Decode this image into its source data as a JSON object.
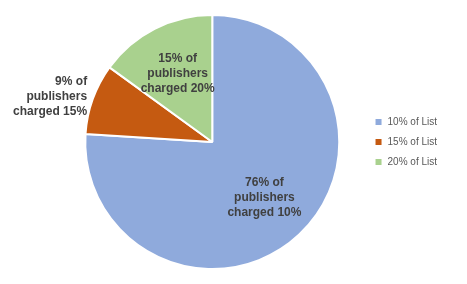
{
  "chart_data": {
    "type": "pie",
    "categories": [
      "10% of List",
      "15% of List",
      "20% of List"
    ],
    "values": [
      76,
      9,
      15
    ],
    "value_labels": [
      "76% of publishers charged 10%",
      "9% of publishers charged 15%",
      "15% of publishers charged 20%"
    ],
    "colors": [
      "#8faadc",
      "#c55a11",
      "#a9d18e"
    ],
    "legend": "right",
    "data_labels": true
  }
}
